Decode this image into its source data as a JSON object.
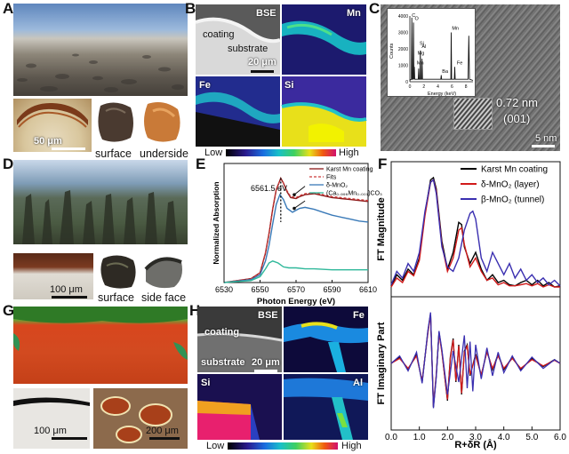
{
  "panels": {
    "A": {
      "letter": "A",
      "scale": "50 μm",
      "caption_1": "surface",
      "caption_2": "underside"
    },
    "B": {
      "letter": "B",
      "labels": [
        "BSE",
        "Mn",
        "Fe",
        "Si"
      ],
      "coating": "coating",
      "substrate": "substrate",
      "scale": "20 μm",
      "low": "Low",
      "high": "High"
    },
    "C": {
      "letter": "C",
      "spacing": "0.72 nm",
      "plane": "(001)",
      "scale": "5 nm",
      "inset": {
        "ylabel": "Counts",
        "xlabel": "Energy (keV)",
        "yticks": [
          "0",
          "1000",
          "2000",
          "3000",
          "4000"
        ],
        "xticks": [
          "0",
          "2",
          "4",
          "6",
          "8"
        ],
        "peaks": [
          "C",
          "O",
          "Mn",
          "Mg",
          "Si",
          "Al",
          "Ba",
          "Mn",
          "Fe"
        ]
      }
    },
    "D": {
      "letter": "D",
      "scale": "100 μm",
      "caption_1": "surface",
      "caption_2": "side face"
    },
    "G": {
      "letter": "G",
      "scale_1": "100 μm",
      "scale_2": "200 μm"
    },
    "H": {
      "letter": "H",
      "labels": [
        "BSE",
        "Fe",
        "Si",
        "Al"
      ],
      "coating": "coating",
      "substrate": "substrate",
      "scale": "20 μm",
      "low": "Low",
      "high": "High"
    }
  },
  "chart_data": [
    {
      "panel": "E",
      "type": "line",
      "xlabel": "Photon Energy (eV)",
      "ylabel": "Normalized Absorption",
      "xlim": [
        6530,
        6610
      ],
      "xticks": [
        6530,
        6550,
        6570,
        6590,
        6610
      ],
      "annotation": "6561.5 eV",
      "legend": [
        "Karst Mn coating",
        "Fits",
        "δ-MnO₂",
        "(Ca₀.₉₉₉Mn₀.₀₀₁)CO₃"
      ],
      "series": [
        {
          "name": "Karst Mn coating",
          "color": "#8b1a1a",
          "x": [
            6530,
            6545,
            6550,
            6553,
            6555,
            6557,
            6559,
            6561.5,
            6563,
            6565,
            6567,
            6570,
            6572,
            6575,
            6580,
            6585,
            6590,
            6595,
            6600,
            6605,
            6610
          ],
          "y": [
            0.0,
            0.04,
            0.1,
            0.3,
            0.5,
            0.75,
            0.95,
            1.07,
            1.02,
            0.93,
            0.87,
            0.86,
            0.88,
            0.9,
            0.91,
            0.89,
            0.87,
            0.86,
            0.85,
            0.84,
            0.83
          ]
        },
        {
          "name": "Fits",
          "color": "#cc3a3a",
          "dashed": true,
          "x": [
            6530,
            6545,
            6550,
            6553,
            6555,
            6557,
            6559,
            6561.5,
            6563,
            6565,
            6567,
            6570,
            6572,
            6575,
            6580,
            6585,
            6590,
            6595,
            6600,
            6605,
            6610
          ],
          "y": [
            0.0,
            0.04,
            0.1,
            0.31,
            0.51,
            0.76,
            0.96,
            1.06,
            1.02,
            0.94,
            0.88,
            0.87,
            0.89,
            0.91,
            0.92,
            0.9,
            0.88,
            0.87,
            0.86,
            0.85,
            0.84
          ]
        },
        {
          "name": "δ-MnO₂",
          "color": "#3a7ab8",
          "x": [
            6530,
            6545,
            6550,
            6553,
            6555,
            6557,
            6559,
            6561,
            6563,
            6565,
            6568,
            6572,
            6575,
            6580,
            6585,
            6590,
            6595,
            6600,
            6605,
            6610
          ],
          "y": [
            0.0,
            0.03,
            0.08,
            0.22,
            0.38,
            0.6,
            0.8,
            0.9,
            0.85,
            0.76,
            0.72,
            0.76,
            0.77,
            0.75,
            0.72,
            0.69,
            0.67,
            0.65,
            0.63,
            0.62
          ]
        },
        {
          "name": "(Ca₀.₉₉₉Mn₀.₀₀₁)CO₃",
          "color": "#2fb89a",
          "x": [
            6530,
            6545,
            6550,
            6553,
            6555,
            6557,
            6560,
            6563,
            6566,
            6570,
            6575,
            6580,
            6590,
            6600,
            6610
          ],
          "y": [
            0.0,
            0.02,
            0.06,
            0.14,
            0.2,
            0.22,
            0.2,
            0.16,
            0.15,
            0.15,
            0.14,
            0.14,
            0.13,
            0.13,
            0.13
          ]
        }
      ]
    },
    {
      "panel": "F",
      "type": "line",
      "xlabel": "R+δR (Å)",
      "ylabel_top": "FT Magnitude",
      "ylabel_bottom": "FT Imaginary Part",
      "xlim": [
        0,
        6.0
      ],
      "xticks": [
        "0.0",
        "1.0",
        "2.0",
        "3.0",
        "4.0",
        "5.0",
        "6.0"
      ],
      "legend": [
        "Karst Mn coating",
        "δ-MnO₂ (layer)",
        "β-MnO₂ (tunnel)"
      ],
      "series_top": [
        {
          "name": "Karst Mn coating",
          "color": "#000000",
          "x": [
            0,
            0.2,
            0.4,
            0.6,
            0.8,
            1.0,
            1.2,
            1.4,
            1.5,
            1.6,
            1.8,
            2.0,
            2.2,
            2.4,
            2.5,
            2.6,
            2.8,
            3.0,
            3.2,
            3.4,
            3.6,
            3.8,
            4.0,
            4.2,
            4.4,
            4.6,
            4.8,
            5.0,
            5.2,
            5.4,
            5.6,
            5.8,
            6.0
          ],
          "y": [
            0.05,
            0.15,
            0.1,
            0.2,
            0.15,
            0.3,
            0.7,
            1.0,
            1.02,
            0.92,
            0.45,
            0.2,
            0.35,
            0.62,
            0.6,
            0.4,
            0.25,
            0.35,
            0.2,
            0.1,
            0.15,
            0.08,
            0.1,
            0.06,
            0.05,
            0.08,
            0.1,
            0.06,
            0.1,
            0.05,
            0.08,
            0.04,
            0.05
          ]
        },
        {
          "name": "δ-MnO₂ (layer)",
          "color": "#d11a1a",
          "x": [
            0,
            0.2,
            0.4,
            0.6,
            0.8,
            1.0,
            1.2,
            1.4,
            1.5,
            1.6,
            1.8,
            2.0,
            2.2,
            2.4,
            2.5,
            2.6,
            2.8,
            3.0,
            3.2,
            3.4,
            3.6,
            3.8,
            4.0,
            4.2,
            4.4,
            4.6,
            4.8,
            5.0,
            5.2,
            5.4,
            5.6,
            5.8,
            6.0
          ],
          "y": [
            0.04,
            0.12,
            0.08,
            0.18,
            0.14,
            0.28,
            0.68,
            0.98,
            1.0,
            0.9,
            0.42,
            0.18,
            0.3,
            0.55,
            0.57,
            0.42,
            0.22,
            0.3,
            0.18,
            0.1,
            0.12,
            0.06,
            0.08,
            0.05,
            0.05,
            0.06,
            0.07,
            0.05,
            0.07,
            0.04,
            0.06,
            0.04,
            0.04
          ]
        },
        {
          "name": "β-MnO₂ (tunnel)",
          "color": "#3a2fb0",
          "x": [
            0,
            0.2,
            0.4,
            0.6,
            0.8,
            1.0,
            1.2,
            1.4,
            1.5,
            1.6,
            1.8,
            2.0,
            2.2,
            2.4,
            2.6,
            2.8,
            2.9,
            3.0,
            3.2,
            3.4,
            3.6,
            3.8,
            4.0,
            4.2,
            4.4,
            4.6,
            4.8,
            5.0,
            5.2,
            5.4,
            5.6,
            5.8,
            6.0
          ],
          "y": [
            0.06,
            0.18,
            0.12,
            0.25,
            0.18,
            0.35,
            0.72,
            0.98,
            1.0,
            0.88,
            0.4,
            0.22,
            0.18,
            0.3,
            0.55,
            0.7,
            0.72,
            0.65,
            0.3,
            0.18,
            0.35,
            0.25,
            0.15,
            0.25,
            0.12,
            0.2,
            0.1,
            0.15,
            0.08,
            0.12,
            0.06,
            0.1,
            0.05
          ]
        }
      ],
      "series_bottom": [
        {
          "name": "Karst Mn coating",
          "color": "#000000",
          "x": [
            0,
            0.3,
            0.6,
            0.9,
            1.1,
            1.3,
            1.4,
            1.5,
            1.6,
            1.7,
            1.8,
            2.0,
            2.1,
            2.2,
            2.3,
            2.4,
            2.5,
            2.6,
            2.7,
            2.8,
            3.0,
            3.2,
            3.4,
            3.6,
            3.8,
            4.0,
            4.3,
            4.6,
            5.0,
            5.4,
            5.8,
            6.0
          ],
          "y": [
            0.0,
            0.1,
            -0.1,
            0.15,
            -0.3,
            0.5,
            0.8,
            -0.7,
            -0.2,
            0.5,
            0.2,
            -0.6,
            0.1,
            0.4,
            -0.3,
            0.3,
            -0.5,
            0.2,
            0.3,
            -0.2,
            0.15,
            -0.2,
            0.2,
            -0.1,
            0.15,
            -0.1,
            0.1,
            -0.1,
            0.08,
            -0.05,
            0.06,
            0.0
          ]
        },
        {
          "name": "δ-MnO₂ (layer)",
          "color": "#d11a1a",
          "x": [
            0,
            0.3,
            0.6,
            0.9,
            1.1,
            1.3,
            1.4,
            1.5,
            1.6,
            1.7,
            1.8,
            2.0,
            2.1,
            2.2,
            2.3,
            2.4,
            2.5,
            2.6,
            2.7,
            2.8,
            3.0,
            3.2,
            3.4,
            3.6,
            3.8,
            4.0,
            4.3,
            4.6,
            5.0,
            5.4,
            5.8,
            6.0
          ],
          "y": [
            0.0,
            0.08,
            -0.08,
            0.12,
            -0.28,
            0.48,
            0.78,
            -0.68,
            -0.18,
            0.48,
            0.18,
            -0.58,
            0.08,
            0.38,
            -0.28,
            0.28,
            -0.48,
            0.18,
            0.28,
            -0.18,
            0.12,
            -0.18,
            0.18,
            -0.08,
            0.12,
            -0.08,
            0.08,
            -0.08,
            0.06,
            -0.04,
            0.05,
            0.0
          ]
        },
        {
          "name": "β-MnO₂ (tunnel)",
          "color": "#3a2fb0",
          "x": [
            0,
            0.3,
            0.6,
            0.9,
            1.1,
            1.3,
            1.4,
            1.5,
            1.6,
            1.7,
            1.8,
            2.0,
            2.2,
            2.4,
            2.6,
            2.7,
            2.8,
            2.9,
            3.0,
            3.2,
            3.4,
            3.6,
            3.8,
            4.0,
            4.3,
            4.6,
            5.0,
            5.4,
            5.8,
            6.0
          ],
          "y": [
            0.0,
            0.12,
            -0.12,
            0.18,
            -0.32,
            0.52,
            0.82,
            -0.72,
            -0.22,
            0.52,
            0.22,
            -0.5,
            0.2,
            -0.3,
            0.45,
            -0.4,
            0.35,
            -0.45,
            0.3,
            -0.25,
            0.25,
            -0.2,
            0.18,
            -0.15,
            0.12,
            -0.12,
            0.1,
            -0.08,
            0.06,
            0.0
          ]
        }
      ]
    }
  ]
}
